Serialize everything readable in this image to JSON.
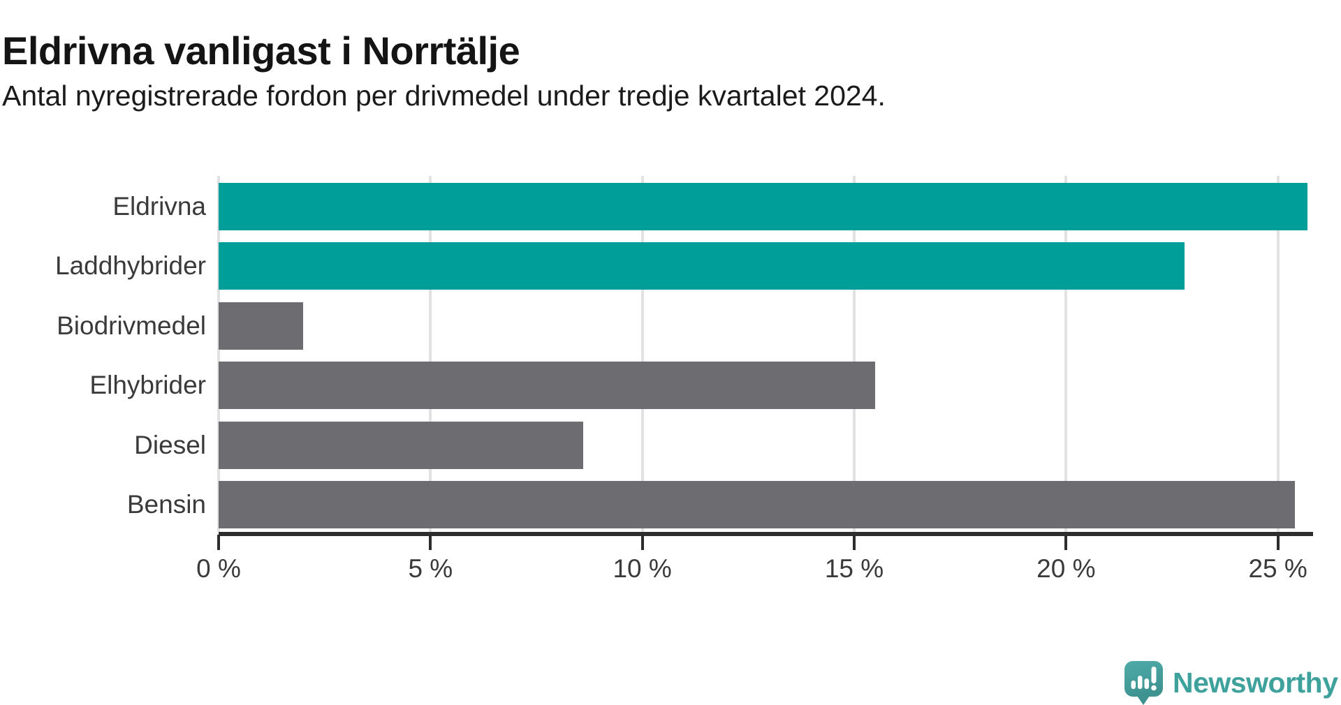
{
  "chart_data": {
    "type": "bar",
    "orientation": "horizontal",
    "title": "Eldrivna vanligast i Norrtälje",
    "subtitle": "Antal nyregistrerade fordon per drivmedel under tredje kvartalet 2024.",
    "categories": [
      "Eldrivna",
      "Laddhybrider",
      "Biodrivmedel",
      "Elhybrider",
      "Diesel",
      "Bensin"
    ],
    "values": [
      25.7,
      22.8,
      2.0,
      15.5,
      8.6,
      25.4
    ],
    "value_unit": "%",
    "bar_colors": [
      "#009e99",
      "#009e99",
      "#6c6c71",
      "#6c6c71",
      "#6c6c71",
      "#6c6c71"
    ],
    "xlim": [
      0,
      25.83
    ],
    "x_ticks": [
      {
        "value": 0,
        "label": "0 %"
      },
      {
        "value": 5,
        "label": "5 %"
      },
      {
        "value": 10,
        "label": "10 %"
      },
      {
        "value": 15,
        "label": "15 %"
      },
      {
        "value": 20,
        "label": "20 %"
      },
      {
        "value": 25,
        "label": "25 %"
      }
    ],
    "grid": true,
    "legend": false
  },
  "colors": {
    "highlight_bar": "#009e99",
    "default_bar": "#6c6c71",
    "grid_line": "#e2e2e5",
    "axis_line": "#2d2d2d",
    "label_text": "#3a3a3a",
    "title_text": "#141414",
    "brand_teal": "#3fa19c"
  },
  "branding": {
    "logo_text": "Newsworthy",
    "logo_icon": "speech-bubble-bar-chart-exclamation"
  }
}
